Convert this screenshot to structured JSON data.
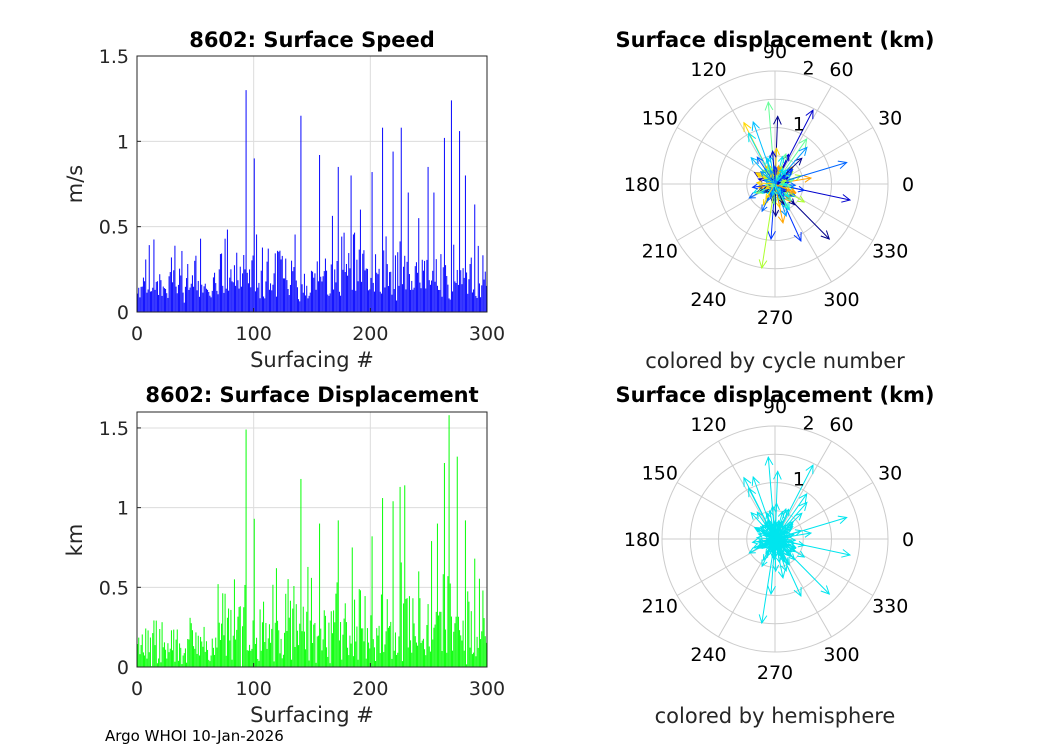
{
  "footer": "Argo WHOI 10-Jan-2026",
  "chart_data": [
    {
      "type": "bar",
      "id": "speed",
      "title": "8602: Surface Speed",
      "xlabel": "Surfacing #",
      "ylabel": "m/s",
      "xlim": [
        0,
        300
      ],
      "ylim": [
        0,
        1.5
      ],
      "xticks": [
        "0",
        "100",
        "200",
        "300"
      ],
      "yticks": [
        "0",
        "0.5",
        "1",
        "1.5"
      ],
      "color": "#0000ff",
      "seed": 11,
      "peaks": [
        [
          94,
          1.3
        ],
        [
          101,
          0.9
        ],
        [
          141,
          1.15
        ],
        [
          157,
          0.92
        ],
        [
          173,
          0.85
        ],
        [
          184,
          0.8
        ],
        [
          192,
          0.6
        ],
        [
          202,
          0.82
        ],
        [
          211,
          1.08
        ],
        [
          220,
          0.94
        ],
        [
          227,
          1.08
        ],
        [
          233,
          0.7
        ],
        [
          242,
          0.55
        ],
        [
          250,
          0.85
        ],
        [
          255,
          0.7
        ],
        [
          264,
          1.02
        ],
        [
          270,
          1.24
        ],
        [
          277,
          1.06
        ],
        [
          282,
          0.8
        ],
        [
          290,
          0.63
        ]
      ]
    },
    {
      "type": "bar",
      "id": "displacement",
      "title": "8602: Surface Displacement",
      "xlabel": "Surfacing #",
      "ylabel": "km",
      "xlim": [
        0,
        300
      ],
      "ylim": [
        0,
        1.6
      ],
      "xticks": [
        "0",
        "100",
        "200",
        "300"
      ],
      "yticks": [
        "0",
        "0.5",
        "1",
        "1.5"
      ],
      "yticks_values": [
        0,
        0.5,
        1,
        1.5
      ],
      "color": "#00ff00",
      "seed": 29,
      "peaks": [
        [
          70,
          0.52
        ],
        [
          84,
          0.55
        ],
        [
          94,
          1.49
        ],
        [
          101,
          0.93
        ],
        [
          120,
          0.62
        ],
        [
          141,
          1.18
        ],
        [
          157,
          0.9
        ],
        [
          173,
          0.92
        ],
        [
          185,
          0.75
        ],
        [
          202,
          0.82
        ],
        [
          211,
          1.06
        ],
        [
          220,
          1.04
        ],
        [
          226,
          1.13
        ],
        [
          230,
          1.14
        ],
        [
          242,
          0.6
        ],
        [
          253,
          0.79
        ],
        [
          258,
          0.9
        ],
        [
          264,
          1.28
        ],
        [
          268,
          1.58
        ],
        [
          275,
          1.32
        ],
        [
          282,
          0.92
        ],
        [
          290,
          0.68
        ],
        [
          297,
          0.48
        ]
      ]
    },
    {
      "type": "polar",
      "id": "compass-cycle",
      "title": "Surface displacement (km)",
      "caption": "colored by cycle number",
      "coloring": "cycle",
      "rmax": 2,
      "angle_labels": [
        "0",
        "30",
        "60",
        "90",
        "120",
        "150",
        "180",
        "210",
        "240",
        "270",
        "300",
        "330"
      ],
      "radial_labels": [
        "1",
        "2"
      ],
      "seed": 53
    },
    {
      "type": "polar",
      "id": "compass-hemisphere",
      "title": "Surface displacement (km)",
      "caption": "colored by hemisphere",
      "coloring": "single",
      "color": "#00e5ee",
      "rmax": 2,
      "angle_labels": [
        "0",
        "30",
        "60",
        "90",
        "120",
        "150",
        "180",
        "210",
        "240",
        "270",
        "300",
        "330"
      ],
      "radial_labels": [
        "1",
        "2"
      ],
      "seed": 53
    }
  ]
}
